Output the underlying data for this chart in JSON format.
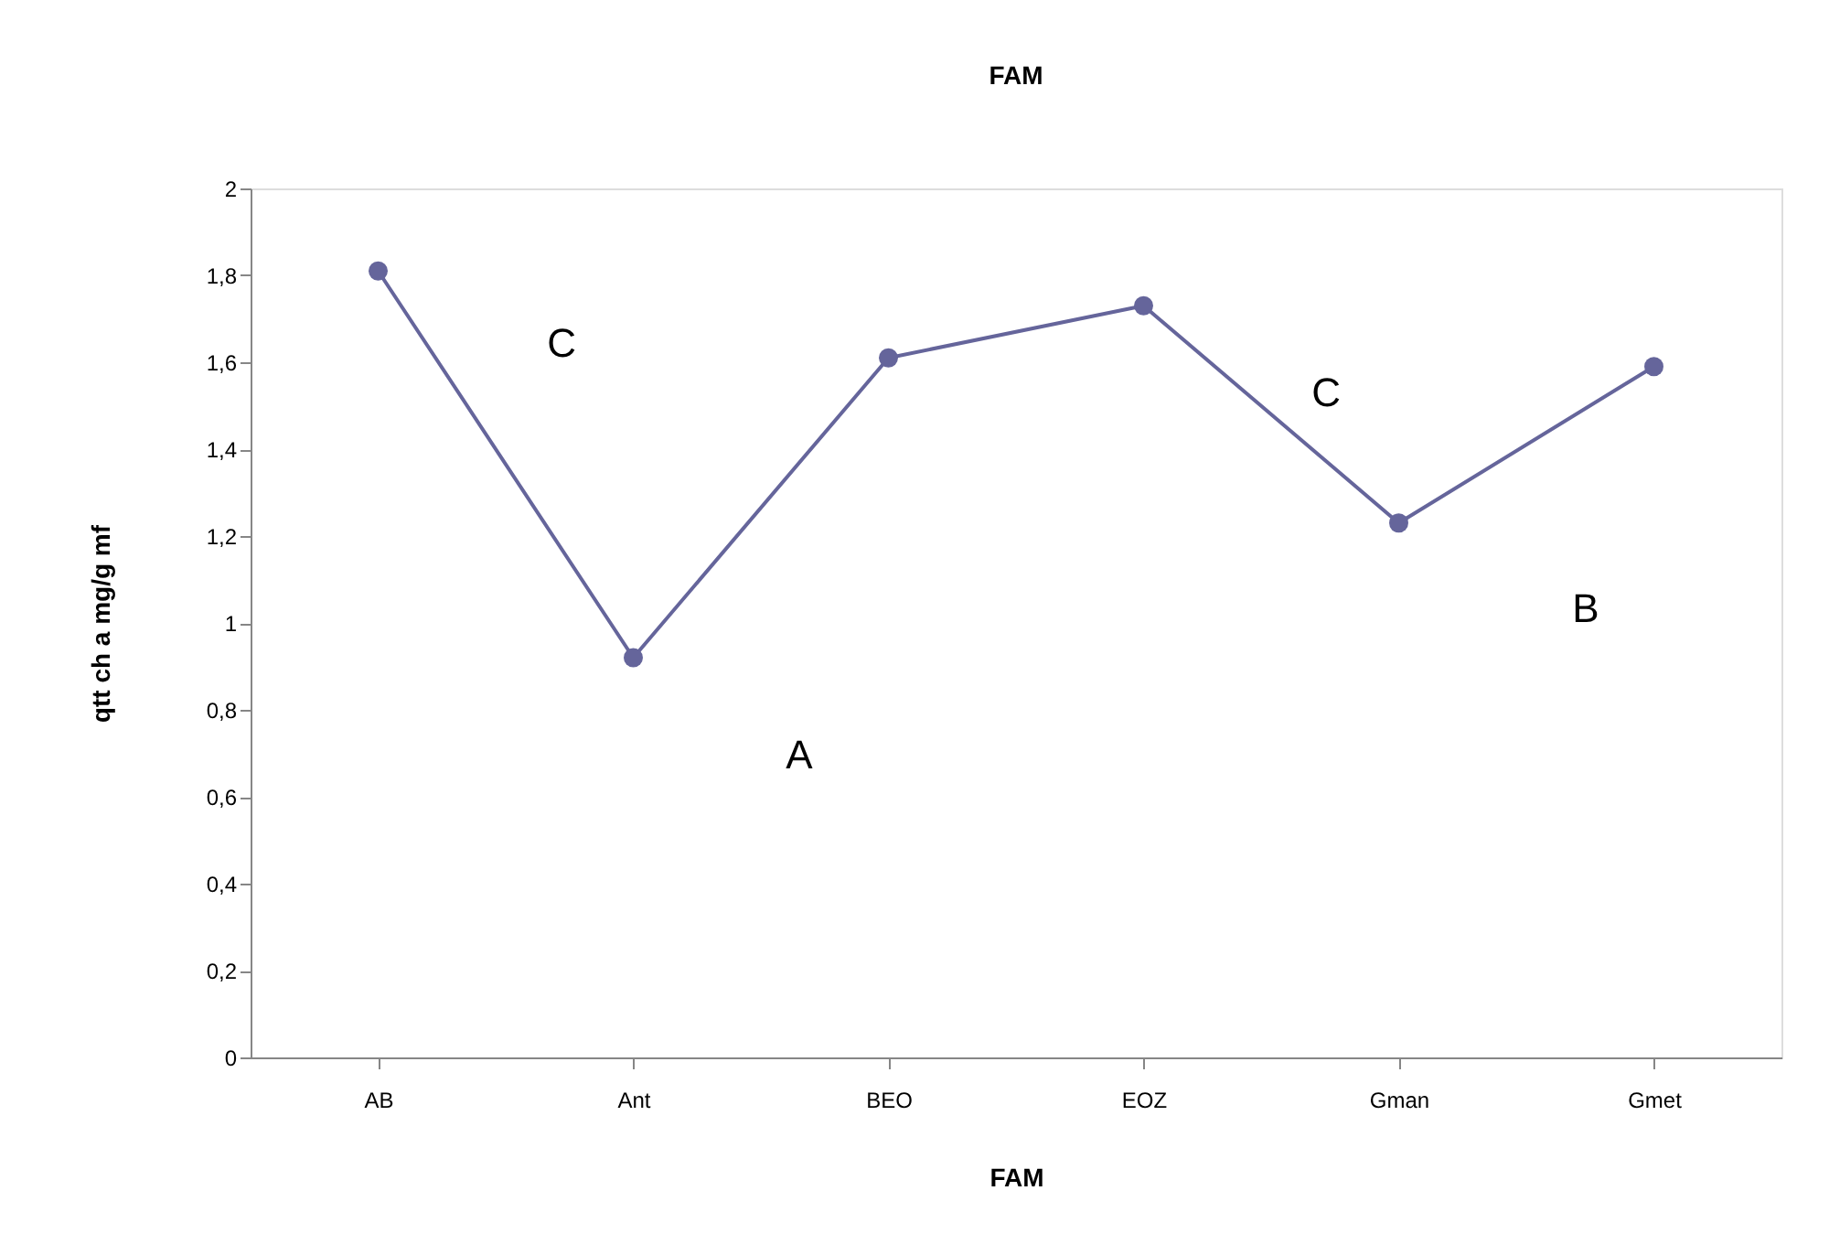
{
  "chart_data": {
    "type": "line",
    "title": "FAM",
    "xlabel": "FAM",
    "ylabel": "qtt ch a mg/g mf",
    "categories": [
      "AB",
      "Ant",
      "BEO",
      "EOZ",
      "Gman",
      "Gmet"
    ],
    "series": [
      {
        "color": "#65659b",
        "values": [
          1.81,
          0.92,
          1.61,
          1.73,
          1.23,
          1.59
        ]
      }
    ],
    "ylim": [
      0,
      2
    ],
    "yticks": [
      {
        "value": 0,
        "label": "0"
      },
      {
        "value": 0.2,
        "label": "0,2"
      },
      {
        "value": 0.4,
        "label": "0,4"
      },
      {
        "value": 0.6,
        "label": "0,6"
      },
      {
        "value": 0.8,
        "label": "0,8"
      },
      {
        "value": 1,
        "label": "1"
      },
      {
        "value": 1.2,
        "label": "1,2"
      },
      {
        "value": 1.4,
        "label": "1,4"
      },
      {
        "value": 1.6,
        "label": "1,6"
      },
      {
        "value": 1.8,
        "label": "1,8"
      },
      {
        "value": 2,
        "label": "2"
      }
    ],
    "annotations": [
      "C",
      "A",
      "C",
      "B"
    ],
    "marker": "circle",
    "grid": false
  }
}
